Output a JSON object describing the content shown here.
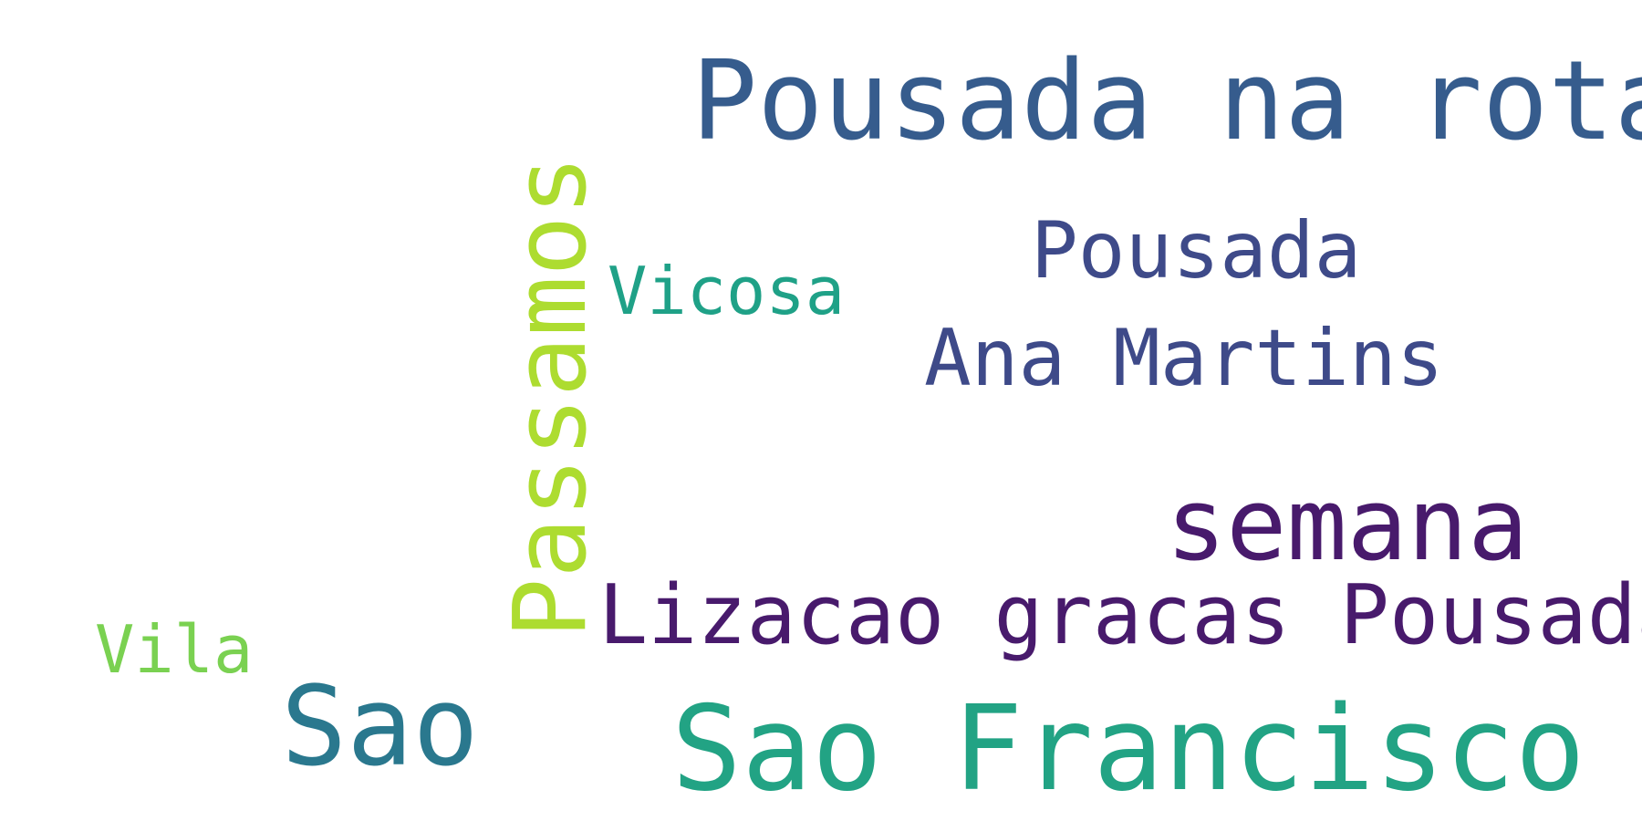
{
  "cloud": {
    "words": {
      "pousada_na_rota": {
        "text": "Pousada na rota",
        "color": "#365c8d"
      },
      "pousada": {
        "text": "Pousada",
        "color": "#3e4a89"
      },
      "vicosa": {
        "text": "Vicosa",
        "color": "#1fa187"
      },
      "ana_martins": {
        "text": "Ana Martins",
        "color": "#3e4a89"
      },
      "passamos": {
        "text": "Passamos",
        "color": "#addc30",
        "orientation": "vertical"
      },
      "semana": {
        "text": "semana",
        "color": "#481a6c"
      },
      "lizacao": {
        "text": "Lizacao gracas Pousada",
        "color": "#481a6c"
      },
      "vila": {
        "text": "Vila",
        "color": "#7ad151"
      },
      "sao": {
        "text": "Sao",
        "color": "#2a788e"
      },
      "sao_francisco": {
        "text": "Sao Francisco",
        "color": "#22a384"
      }
    }
  }
}
